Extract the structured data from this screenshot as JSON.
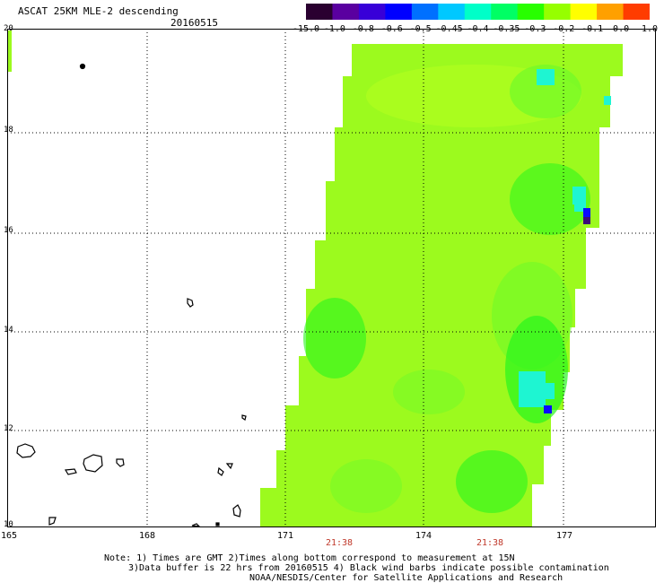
{
  "header": {
    "title": "ASCAT 25KM MLE-2 descending",
    "date": "20160515"
  },
  "colorbar": {
    "labels": [
      "-15.0",
      "-1.0",
      "-0.8",
      "-0.6",
      "-0.5",
      "-0.45",
      "-0.4",
      "-0.35",
      "-0.3",
      "-0.2",
      "-0.1",
      "0.0",
      "1.0"
    ],
    "colors": [
      "#2a0030",
      "#5a00a0",
      "#3800d8",
      "#0000ff",
      "#0070ff",
      "#00c8ff",
      "#00ffc8",
      "#00ff64",
      "#28ff00",
      "#96ff00",
      "#ffff00",
      "#ffa000",
      "#ff3c00"
    ]
  },
  "axes": {
    "lat_labels": [
      "20",
      "18",
      "16",
      "14",
      "12",
      "10"
    ],
    "lon_labels": [
      "165",
      "168",
      "171",
      "174",
      "177"
    ],
    "time_labels": [
      "21:38",
      "21:38"
    ],
    "time_color": "#c0392b"
  },
  "notes": {
    "line1": "Note: 1) Times are GMT 2)Times along bottom correspond to measurement at 15N",
    "line2": "3)Data buffer is 22 hrs from 20160515 4) Black wind barbs indicate possible contamination",
    "line3": "NOAA/NESDIS/Center for Satellite Applications and Research"
  },
  "swath_colors": {
    "main": "#9cfa1e",
    "light": "#b4ff1e",
    "mid": "#70fa28",
    "dark": "#28f51e",
    "cyan": "#1ef5d2",
    "blue": "#0a0aff",
    "purple": "#3c0a78"
  }
}
